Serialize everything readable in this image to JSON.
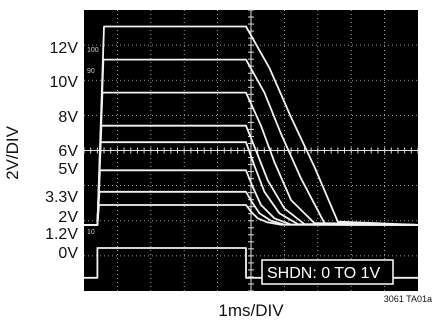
{
  "chart_data": {
    "type": "line",
    "title": "",
    "xlabel": "1ms/DIV",
    "ylabel": "2V/DIV",
    "y_tick_labels": [
      "12V",
      "10V",
      "8V",
      "6V",
      "5V",
      "3.3V",
      "2V",
      "1.2V",
      "0V"
    ],
    "screen_marks": [
      "100",
      "90",
      "10"
    ],
    "annotation": "SHDN: 0 TO 1V",
    "figure_id": "3061 TA01a",
    "grid": true,
    "x_divisions": 10,
    "y_divisions": 8,
    "xlim": [
      0,
      10
    ],
    "ylim": [
      -4,
      13
    ],
    "x_units": "ms",
    "y_units": "V",
    "series": [
      {
        "level": 12,
        "x": [
          0.0,
          0.4,
          0.6,
          1.35,
          4.85,
          5.55,
          6.2,
          6.9,
          7.6,
          10.0
        ],
        "y": [
          0,
          0,
          12,
          12,
          12,
          9.5,
          6.5,
          3.5,
          0.2,
          0
        ]
      },
      {
        "level": 10,
        "x": [
          0.0,
          0.4,
          0.58,
          1.35,
          4.85,
          5.4,
          5.9,
          6.5,
          7.2,
          10.0
        ],
        "y": [
          0,
          0,
          10,
          10,
          10,
          8.0,
          5.5,
          2.8,
          0.1,
          0
        ]
      },
      {
        "level": 8,
        "x": [
          0.0,
          0.4,
          0.55,
          1.35,
          4.85,
          5.3,
          5.7,
          6.2,
          6.9,
          10.0
        ],
        "y": [
          0,
          0,
          8,
          8,
          8,
          6.0,
          3.8,
          1.5,
          0.1,
          0
        ]
      },
      {
        "level": 6,
        "x": [
          0.0,
          0.4,
          0.52,
          1.35,
          4.85,
          5.15,
          5.5,
          6.0,
          6.6,
          10.0
        ],
        "y": [
          0,
          0,
          6,
          6,
          6,
          4.5,
          2.7,
          1.0,
          0.05,
          0
        ]
      },
      {
        "level": 5,
        "x": [
          0.0,
          0.4,
          0.5,
          1.35,
          4.85,
          5.1,
          5.4,
          5.85,
          6.4,
          10.0
        ],
        "y": [
          0,
          0,
          5,
          5,
          5,
          3.6,
          2.0,
          0.7,
          0.05,
          0
        ]
      },
      {
        "level": 3.3,
        "x": [
          0.0,
          0.4,
          0.48,
          1.35,
          4.85,
          5.05,
          5.3,
          5.7,
          6.2,
          10.0
        ],
        "y": [
          0,
          0,
          3.3,
          3.3,
          3.3,
          2.3,
          1.2,
          0.4,
          0.02,
          0
        ]
      },
      {
        "level": 2,
        "x": [
          0.0,
          0.4,
          0.46,
          1.35,
          4.85,
          5.02,
          5.25,
          5.6,
          6.0,
          10.0
        ],
        "y": [
          0,
          0,
          2,
          2,
          2,
          1.4,
          0.7,
          0.25,
          0.02,
          0
        ]
      },
      {
        "level": 1.2,
        "x": [
          0.0,
          0.4,
          0.45,
          1.35,
          4.85,
          5.0,
          5.2,
          5.5,
          5.9,
          10.0
        ],
        "y": [
          0,
          0,
          1.2,
          1.2,
          1.2,
          0.8,
          0.4,
          0.15,
          0.01,
          0
        ]
      }
    ],
    "control_trace": {
      "x": [
        0.0,
        0.4,
        0.4,
        4.85,
        4.85,
        10.0
      ],
      "y": [
        -3.2,
        -3.2,
        -1.4,
        -1.4,
        -3.2,
        -3.2
      ]
    }
  }
}
